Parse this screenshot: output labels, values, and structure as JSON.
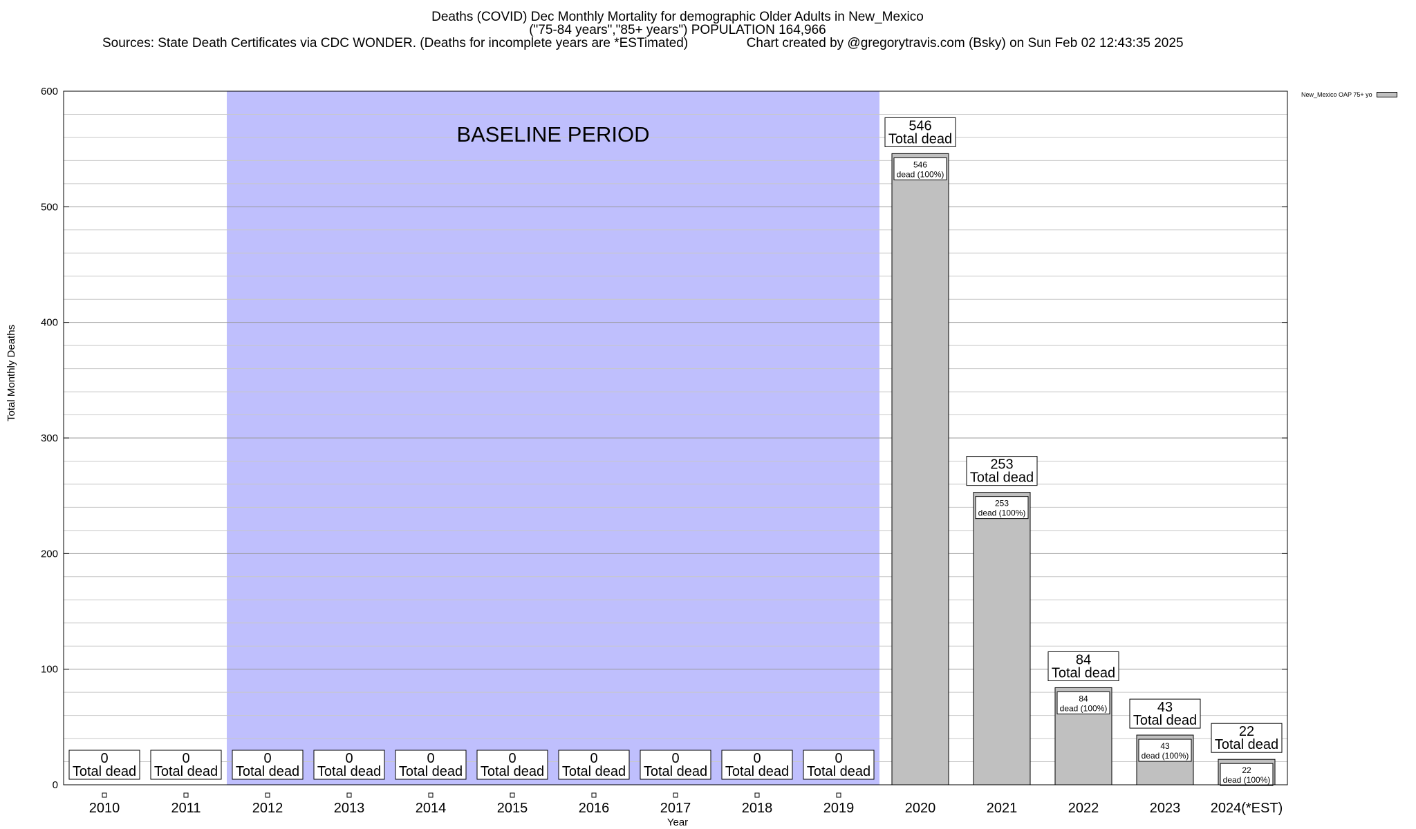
{
  "chart_data": {
    "type": "bar",
    "title": "Deaths (COVID) Dec Monthly Mortality for demographic Older Adults in New_Mexico",
    "subtitle": "(\"75-84 years\",\"85+ years\") POPULATION 164,966",
    "source_line": "Sources: State Death Certificates via CDC WONDER. (Deaths for incomplete years are *ESTimated)",
    "credit_line": "Chart created by @gregorytravis.com (Bsky) on Sun Feb 02 12:43:35 2025",
    "xlabel": "Year",
    "ylabel": "Total Monthly Deaths",
    "ylim": [
      0,
      600
    ],
    "yticks": [
      0,
      100,
      200,
      300,
      400,
      500,
      600
    ],
    "categories": [
      "2010",
      "2011",
      "2012",
      "2013",
      "2014",
      "2015",
      "2016",
      "2017",
      "2018",
      "2019",
      "2020",
      "2021",
      "2022",
      "2023",
      "2024(*EST)"
    ],
    "series": [
      {
        "name": "New_Mexico OAP 75+ yo",
        "color": "#c0c0c0",
        "values": [
          0,
          0,
          0,
          0,
          0,
          0,
          0,
          0,
          0,
          0,
          546,
          253,
          84,
          43,
          22
        ]
      }
    ],
    "total_label_suffix": "Total dead",
    "inner_label_suffix": "dead (100%)",
    "baseline": {
      "label": "BASELINE PERIOD",
      "from": "2012",
      "to": "2019",
      "color": "#bfbffd"
    },
    "grid": true,
    "legend_position": "top-right"
  }
}
